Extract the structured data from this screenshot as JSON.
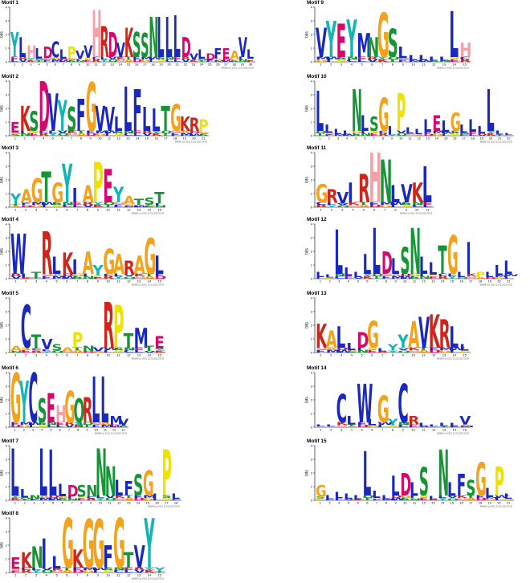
{
  "colors": {
    "A": "#f4a11b",
    "C": "#1a28c2",
    "D": "#d6086e",
    "E": "#d6086e",
    "F": "#1a28c2",
    "G": "#f4a11b",
    "H": "#f5a0a8",
    "I": "#1a28c2",
    "K": "#d0251a",
    "L": "#1a28c2",
    "M": "#1a28c2",
    "N": "#149634",
    "P": "#efe200",
    "Q": "#149634",
    "R": "#d0251a",
    "S": "#149634",
    "T": "#149634",
    "V": "#1a28c2",
    "W": "#1a28c2",
    "Y": "#12b5b5"
  },
  "ylabel": "bits",
  "yticks": [
    "0",
    "1",
    "2",
    "3",
    "4"
  ],
  "meme_footer": "MEME (no SSC) 22.02.2022 09:33",
  "motifs": [
    {
      "id": "motif-1",
      "title": "Motif 1",
      "col": 0,
      "row": 0,
      "len": 30,
      "consensus": [
        "Y",
        "L",
        "H",
        "L",
        "D",
        "C",
        "L",
        "P",
        "V",
        "V",
        "H",
        "R",
        "D",
        "V",
        "K",
        "S",
        "S",
        "N",
        "L",
        "L",
        "L",
        "D",
        "V",
        "L",
        "D",
        "F",
        "E",
        "A",
        "V",
        "L"
      ],
      "heights": [
        2.2,
        1.8,
        1.2,
        1.0,
        1.1,
        1.5,
        0.9,
        1.1,
        0.8,
        1.2,
        3.8,
        2.6,
        2.2,
        1.4,
        2.5,
        2.2,
        2.1,
        3.3,
        3.3,
        3.3,
        3.4,
        1.8,
        0.6,
        0.9,
        0.6,
        1.0,
        1.0,
        0.8,
        1.8,
        0.9
      ]
    },
    {
      "id": "motif-2",
      "title": "Motif 2",
      "col": 0,
      "row": 1,
      "len": 21,
      "consensus": [
        "E",
        "K",
        "S",
        "D",
        "V",
        "Y",
        "S",
        "F",
        "G",
        "V",
        "V",
        "L",
        "L",
        "F",
        "L",
        "L",
        "T",
        "G",
        "K",
        "R",
        "P"
      ],
      "heights": [
        1.0,
        2.2,
        1.8,
        4.0,
        3.1,
        2.6,
        2.1,
        2.7,
        3.9,
        2.2,
        2.1,
        1.4,
        3.6,
        3.4,
        2.1,
        2.0,
        2.2,
        2.3,
        1.4,
        1.3,
        1.2
      ]
    },
    {
      "id": "motif-3",
      "title": "Motif 3",
      "col": 0,
      "row": 2,
      "len": 15,
      "consensus": [
        "Y",
        "A",
        "G",
        "T",
        "G",
        "Y",
        "I",
        "A",
        "P",
        "E",
        "Y",
        "A",
        "T",
        "S",
        "T"
      ],
      "heights": [
        1.0,
        1.3,
        2.1,
        2.6,
        1.8,
        3.2,
        1.4,
        1.6,
        3.3,
        2.8,
        1.5,
        0.8,
        0.6,
        0.7,
        1.1
      ]
    },
    {
      "id": "motif-4",
      "title": "Motif 4",
      "col": 0,
      "row": 3,
      "len": 15,
      "consensus": [
        "W",
        "I",
        "T",
        "R",
        "L",
        "K",
        "I",
        "A",
        "Y",
        "G",
        "A",
        "R",
        "A",
        "G",
        "L"
      ],
      "heights": [
        3.3,
        0.4,
        0.5,
        3.5,
        1.6,
        1.9,
        1.4,
        2.0,
        1.0,
        2.2,
        1.8,
        1.3,
        1.7,
        3.0,
        1.7
      ]
    },
    {
      "id": "motif-5",
      "title": "Motif 5",
      "col": 0,
      "row": 4,
      "len": 15,
      "consensus": [
        "A",
        "C",
        "T",
        "V",
        "S",
        "A",
        "P",
        "N",
        "V",
        "R",
        "P",
        "T",
        "M",
        "T",
        "E"
      ],
      "heights": [
        0.5,
        3.5,
        1.3,
        1.0,
        0.6,
        0.4,
        1.5,
        0.5,
        0.4,
        3.7,
        3.5,
        1.4,
        1.8,
        0.5,
        1.2
      ]
    },
    {
      "id": "motif-6",
      "title": "Motif 6",
      "col": 0,
      "row": 5,
      "len": 13,
      "consensus": [
        "G",
        "Y",
        "C",
        "S",
        "E",
        "H",
        "G",
        "Q",
        "R",
        "L",
        "L",
        "M",
        "V"
      ],
      "heights": [
        4.0,
        3.4,
        4.0,
        2.1,
        2.5,
        1.6,
        2.7,
        2.1,
        2.2,
        3.7,
        3.7,
        0.8,
        0.6
      ]
    },
    {
      "id": "motif-7",
      "title": "Motif 7",
      "col": 0,
      "row": 6,
      "len": 18,
      "consensus": [
        "L",
        "L",
        "N",
        "L",
        "L",
        "L",
        "D",
        "S",
        "N",
        "N",
        "N",
        "L",
        "F",
        "S",
        "G",
        "I",
        "P",
        "L"
      ],
      "heights": [
        3.8,
        0.8,
        0.4,
        3.8,
        3.7,
        1.2,
        1.1,
        1.1,
        1.1,
        3.8,
        2.5,
        1.5,
        1.4,
        1.9,
        2.2,
        0.5,
        3.7,
        0.5
      ]
    },
    {
      "id": "motif-8",
      "title": "Motif 8",
      "col": 0,
      "row": 7,
      "len": 15,
      "consensus": [
        "E",
        "K",
        "N",
        "I",
        "L",
        "G",
        "K",
        "G",
        "G",
        "F",
        "G",
        "T",
        "V",
        "Y",
        "Y"
      ],
      "heights": [
        1.1,
        1.5,
        1.9,
        2.5,
        1.2,
        4.0,
        1.7,
        3.9,
        3.9,
        2.0,
        4.0,
        1.5,
        2.0,
        4.0,
        0.4
      ]
    },
    {
      "id": "motif-9",
      "title": "Motif 9",
      "col": 1,
      "row": 0,
      "len": 15,
      "consensus": [
        "V",
        "Y",
        "E",
        "Y",
        "M",
        "N",
        "G",
        "S",
        "L",
        "L",
        "L",
        "L",
        "L",
        "L",
        "H"
      ],
      "heights": [
        2.5,
        3.0,
        2.8,
        3.1,
        2.1,
        1.8,
        3.6,
        2.4,
        1.1,
        0.5,
        0.5,
        0.4,
        0.4,
        3.7,
        1.4
      ]
    },
    {
      "id": "motif-10",
      "title": "Motif 10",
      "col": 1,
      "row": 1,
      "len": 22,
      "consensus": [
        "L",
        "L",
        "L",
        "L",
        "N",
        "L",
        "S",
        "G",
        "I",
        "P",
        "L",
        "L",
        "L",
        "E",
        "L",
        "G",
        "L",
        "L",
        "L",
        "L",
        "L",
        "L"
      ],
      "heights": [
        3.3,
        0.8,
        0.5,
        0.4,
        3.4,
        1.5,
        1.4,
        2.8,
        0.7,
        3.1,
        0.6,
        0.5,
        1.2,
        1.5,
        1.1,
        1.7,
        0.8,
        1.2,
        0.7,
        3.4,
        0.4,
        0.2
      ]
    },
    {
      "id": "motif-11",
      "title": "Motif 11",
      "col": 1,
      "row": 2,
      "len": 11,
      "consensus": [
        "G",
        "R",
        "V",
        "I",
        "R",
        "H",
        "N",
        "L",
        "V",
        "K",
        "L"
      ],
      "heights": [
        1.7,
        1.3,
        1.1,
        1.8,
        2.4,
        4.0,
        3.5,
        1.6,
        1.7,
        1.8,
        3.0
      ]
    },
    {
      "id": "motif-12",
      "title": "Motif 12",
      "col": 1,
      "row": 3,
      "len": 21,
      "consensus": [
        "L",
        "L",
        "L",
        "L",
        "L",
        "L",
        "L",
        "D",
        "L",
        "S",
        "N",
        "L",
        "L",
        "T",
        "G",
        "L",
        "I",
        "P",
        "L",
        "L",
        "L"
      ],
      "heights": [
        0.5,
        0.3,
        3.6,
        0.8,
        0.5,
        1.8,
        3.7,
        2.0,
        1.5,
        2.3,
        3.7,
        1.6,
        1.2,
        2.4,
        3.2,
        0.5,
        2.7,
        0.5,
        0.5,
        1.0,
        1.3
      ]
    },
    {
      "id": "motif-13",
      "title": "Motif 13",
      "col": 1,
      "row": 4,
      "len": 15,
      "consensus": [
        "K",
        "A",
        "L",
        "L",
        "D",
        "G",
        "L",
        "Y",
        "Y",
        "A",
        "V",
        "K",
        "R",
        "L",
        "L"
      ],
      "heights": [
        2.1,
        1.6,
        1.9,
        0.7,
        1.5,
        2.3,
        0.3,
        0.6,
        1.3,
        2.3,
        2.6,
        2.8,
        2.4,
        1.9,
        0.6
      ]
    },
    {
      "id": "motif-14",
      "title": "Motif 14",
      "col": 1,
      "row": 5,
      "len": 15,
      "consensus": [
        "L",
        "L",
        "C",
        "L",
        "W",
        "L",
        "G",
        "Y",
        "C",
        "R",
        "L",
        "L",
        "L",
        "L",
        "V"
      ],
      "heights": [
        0.2,
        0.2,
        2.4,
        0.8,
        3.2,
        0.6,
        2.3,
        0.6,
        3.2,
        0.8,
        0.3,
        0.2,
        0.3,
        0.3,
        0.8
      ]
    },
    {
      "id": "motif-15",
      "title": "Motif 15",
      "col": 1,
      "row": 6,
      "len": 21,
      "consensus": [
        "G",
        "L",
        "L",
        "L",
        "L",
        "L",
        "L",
        "L",
        "L",
        "D",
        "L",
        "S",
        "L",
        "N",
        "L",
        "F",
        "S",
        "G",
        "L",
        "P",
        "L"
      ],
      "heights": [
        1.1,
        0.4,
        0.6,
        0.5,
        0.4,
        3.6,
        0.7,
        0.4,
        1.8,
        2.0,
        1.3,
        2.4,
        0.3,
        3.7,
        1.3,
        1.9,
        1.5,
        2.8,
        0.9,
        2.5,
        0.5
      ]
    }
  ]
}
